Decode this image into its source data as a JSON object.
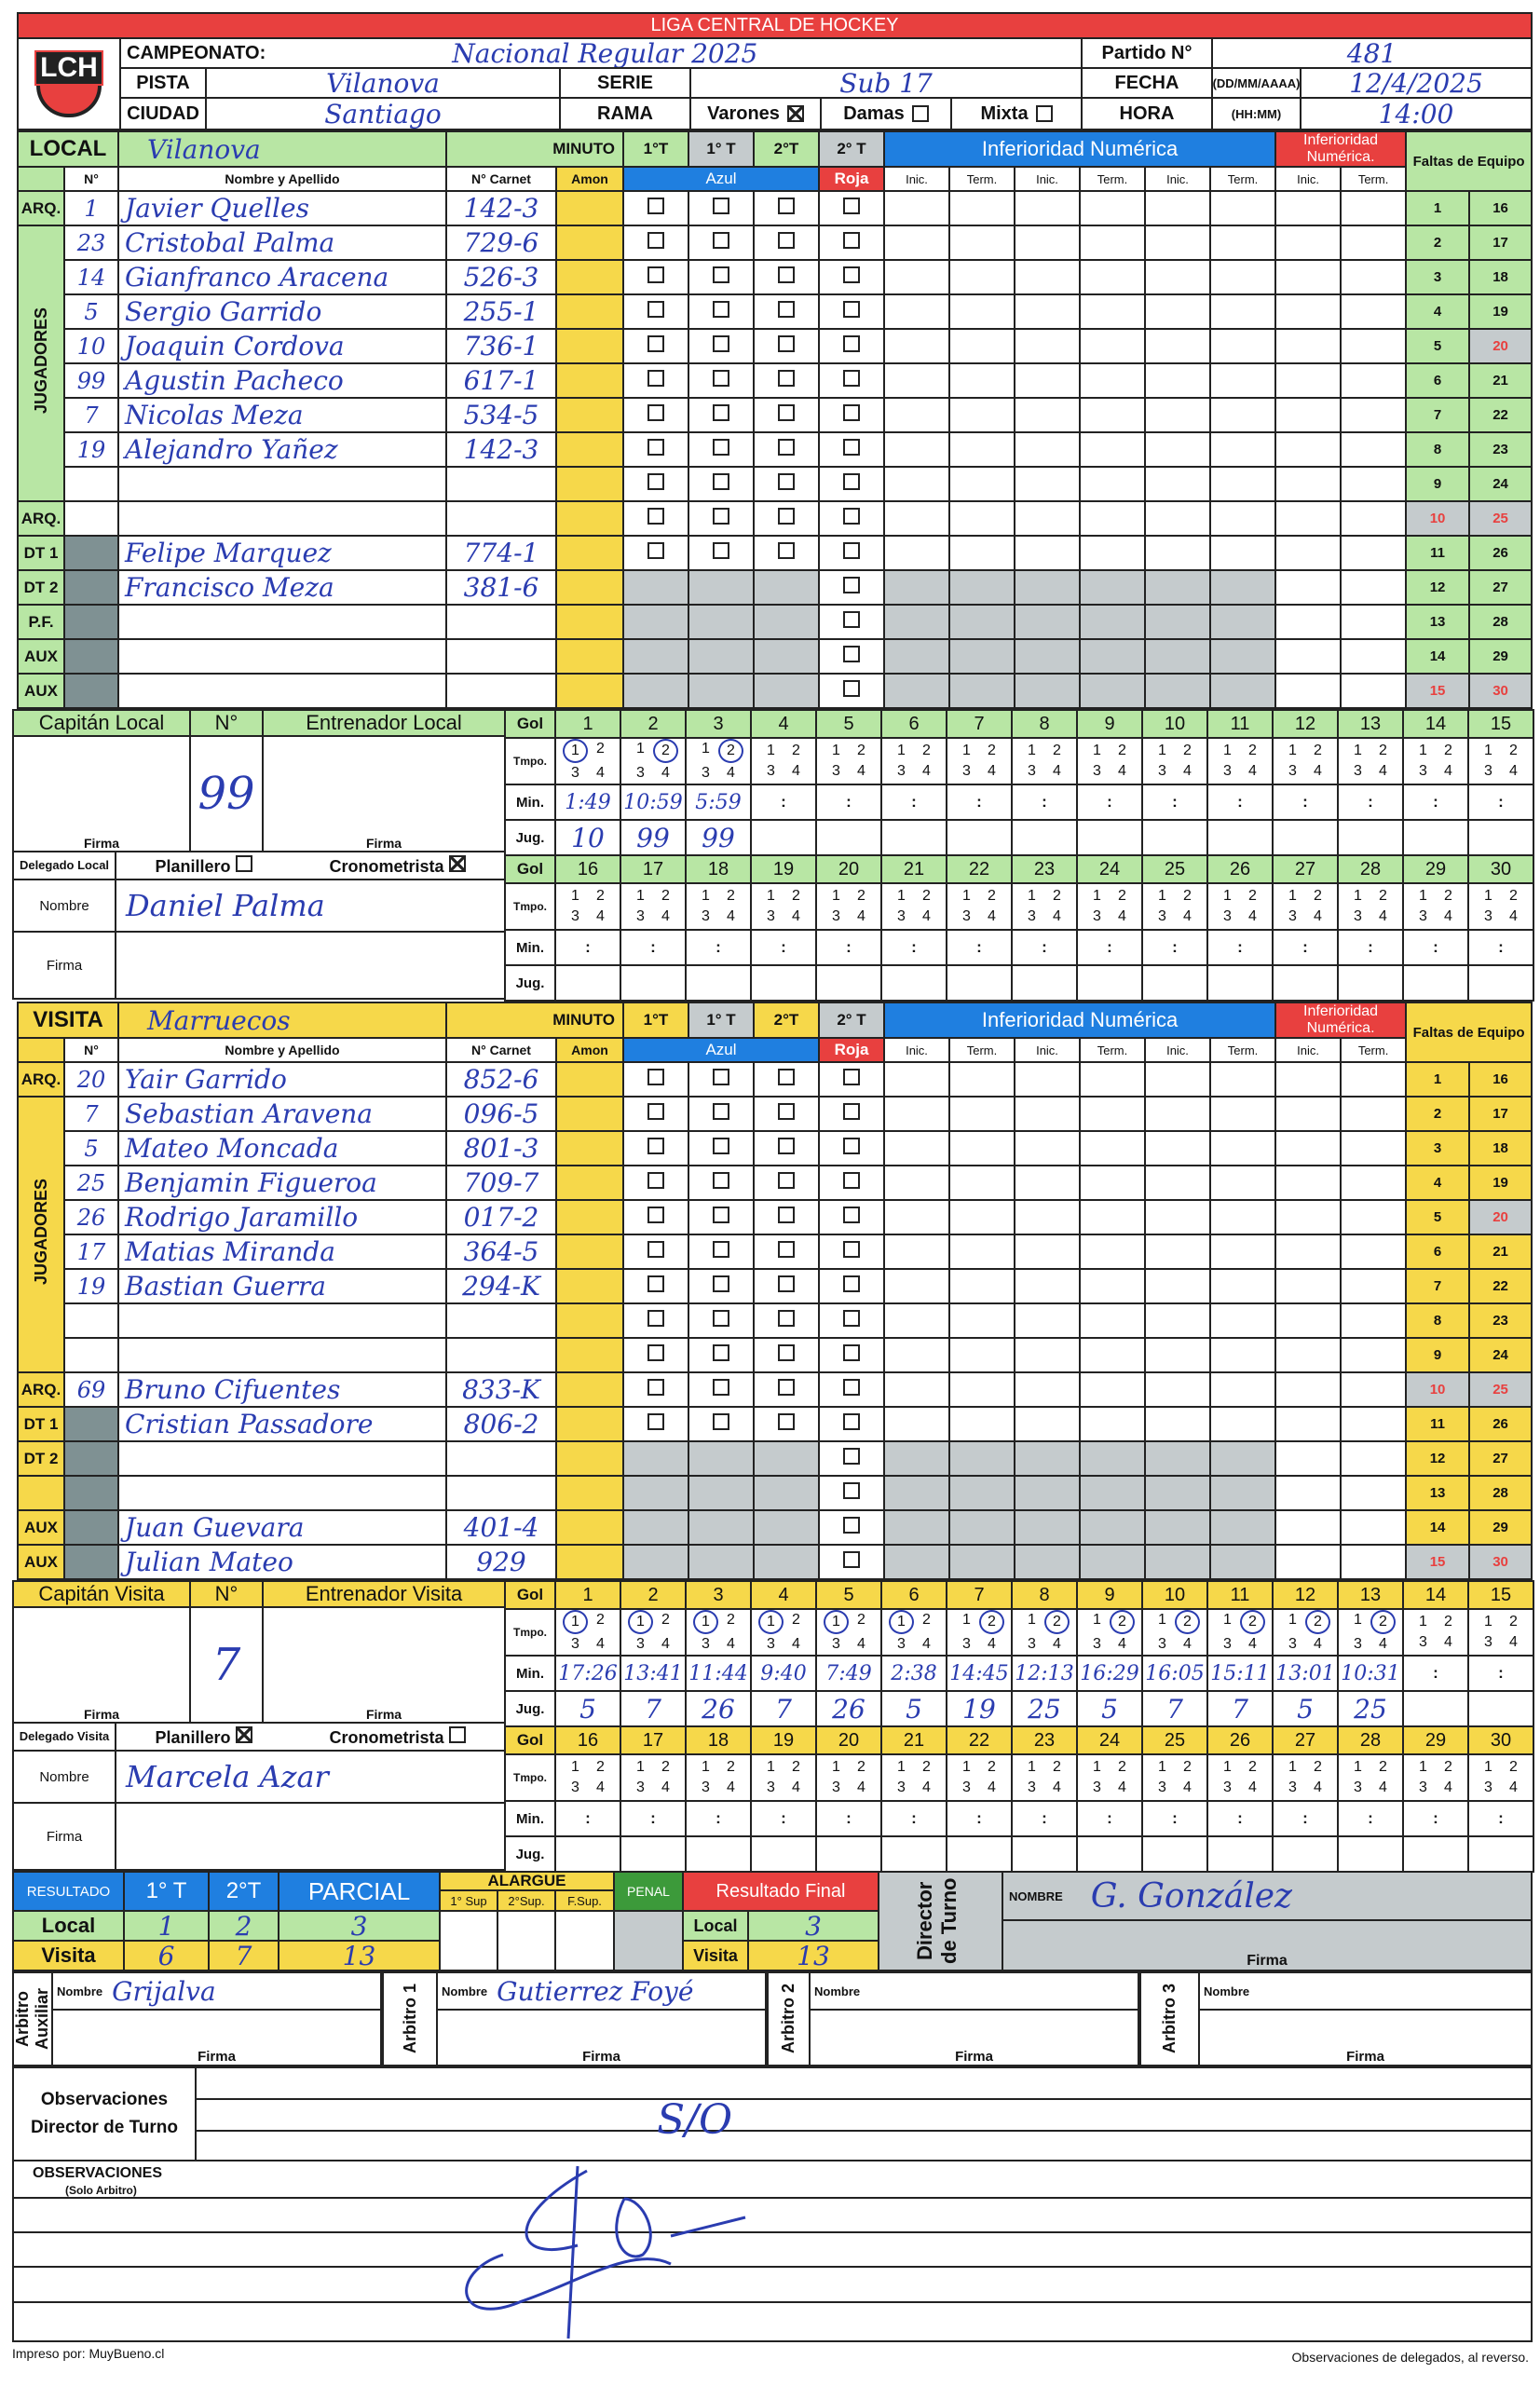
{
  "header": {
    "league": "LIGA CENTRAL DE HOCKEY",
    "logo": "LCH",
    "campeonato_label": "CAMPEONATO:",
    "campeonato": "Nacional Regular 2025",
    "partido_label": "Partido N°",
    "partido": "481",
    "pista_label": "PISTA",
    "pista": "Vilanova",
    "serie_label": "SERIE",
    "serie": "Sub 17",
    "fecha_label": "FECHA",
    "fecha_format": "(DD/MM/AAAA)",
    "fecha": "12/4/2025",
    "ciudad_label": "CIUDAD",
    "ciudad": "Santiago",
    "rama_label": "RAMA",
    "varones": "Varones",
    "varones_checked": true,
    "damas": "Damas",
    "damas_checked": false,
    "mixta": "Mixta",
    "mixta_checked": false,
    "hora_label": "HORA",
    "hora_format": "(HH:MM)",
    "hora": "14:00"
  },
  "cols": {
    "minuto": "MINUTO",
    "p1a": "1°T",
    "p1b": "1° T",
    "p2a": "2°T",
    "p2b": "2° T",
    "inferioridad": "Inferioridad Numérica",
    "inferioridad2": "Inferioridad Numérica.",
    "faltas": "Faltas de Equipo",
    "num": "N°",
    "nombre": "Nombre y Apellido",
    "carnet": "N° Carnet",
    "amon": "Amon",
    "azul": "Azul",
    "roja": "Roja",
    "inic": "Inic.",
    "term": "Term.",
    "jugadores": "JUGADORES",
    "gol": "Gol",
    "tmpo": "Tmpo.",
    "min": "Min.",
    "jug": "Jug.",
    "firma": "Firma",
    "nombre_short": "Nombre"
  },
  "faltas": [
    1,
    2,
    3,
    4,
    5,
    6,
    7,
    8,
    9,
    10,
    11,
    12,
    13,
    14,
    15,
    16,
    17,
    18,
    19,
    20,
    21,
    22,
    23,
    24,
    25,
    26,
    27,
    28,
    29,
    30
  ],
  "faltas_red": [
    10,
    15,
    20,
    25,
    30
  ],
  "colors": {
    "red": "#e8403f",
    "green": "#b8e6a4",
    "yellow": "#f6d84a",
    "blue": "#1f7fe0",
    "grey": "#c5cbcd",
    "ink": "#2a3cb0"
  },
  "local": {
    "label": "LOCAL",
    "name": "Vilanova",
    "rows": [
      {
        "label": "ARQ.",
        "num": "1",
        "name": "Javier Quelles",
        "carnet": "142-3"
      },
      {
        "label": "",
        "num": "23",
        "name": "Cristobal Palma",
        "carnet": "729-6"
      },
      {
        "label": "",
        "num": "14",
        "name": "Gianfranco Aracena",
        "carnet": "526-3"
      },
      {
        "label": "",
        "num": "5",
        "name": "Sergio Garrido",
        "carnet": "255-1"
      },
      {
        "label": "",
        "num": "10",
        "name": "Joaquin Cordova",
        "carnet": "736-1"
      },
      {
        "label": "",
        "num": "99",
        "name": "Agustin Pacheco",
        "carnet": "617-1"
      },
      {
        "label": "",
        "num": "7",
        "name": "Nicolas Meza",
        "carnet": "534-5"
      },
      {
        "label": "",
        "num": "19",
        "name": "Alejandro Yañez",
        "carnet": "142-3"
      },
      {
        "label": "",
        "num": "",
        "name": "",
        "carnet": ""
      },
      {
        "label": "ARQ.",
        "num": "",
        "name": "",
        "carnet": ""
      },
      {
        "label": "DT 1",
        "num": "",
        "name": "Felipe Marquez",
        "carnet": "774-1"
      },
      {
        "label": "DT 2",
        "num": "",
        "name": "Francisco Meza",
        "carnet": "381-6"
      },
      {
        "label": "P.F.",
        "num": "",
        "name": "",
        "carnet": ""
      },
      {
        "label": "AUX",
        "num": "",
        "name": "",
        "carnet": ""
      },
      {
        "label": "AUX",
        "num": "",
        "name": "",
        "carnet": ""
      }
    ],
    "captain_label": "Capitán Local",
    "num_label": "N°",
    "coach_label": "Entrenador Local",
    "captain_num": "99",
    "delegado_label": "Delegado Local",
    "planillero": "Planillero",
    "planillero_checked": false,
    "cronometrista": "Cronometrista",
    "cronometrista_checked": true,
    "delegado_name": "Daniel Palma",
    "goals": [
      {
        "period": 1,
        "min": "1:49",
        "jug": "10"
      },
      {
        "period": 2,
        "min": "10:59",
        "jug": "99"
      },
      {
        "period": 2,
        "min": "5:59",
        "jug": "99"
      }
    ]
  },
  "visita": {
    "label": "VISITA",
    "name": "Marruecos",
    "rows": [
      {
        "label": "ARQ.",
        "num": "20",
        "name": "Yair Garrido",
        "carnet": "852-6"
      },
      {
        "label": "",
        "num": "7",
        "name": "Sebastian Aravena",
        "carnet": "096-5"
      },
      {
        "label": "",
        "num": "5",
        "name": "Mateo Moncada",
        "carnet": "801-3"
      },
      {
        "label": "",
        "num": "25",
        "name": "Benjamin Figueroa",
        "carnet": "709-7"
      },
      {
        "label": "",
        "num": "26",
        "name": "Rodrigo Jaramillo",
        "carnet": "017-2"
      },
      {
        "label": "",
        "num": "17",
        "name": "Matias Miranda",
        "carnet": "364-5"
      },
      {
        "label": "",
        "num": "19",
        "name": "Bastian Guerra",
        "carnet": "294-K"
      },
      {
        "label": "",
        "num": "",
        "name": "",
        "carnet": ""
      },
      {
        "label": "",
        "num": "",
        "name": "",
        "carnet": ""
      },
      {
        "label": "ARQ.",
        "num": "69",
        "name": "Bruno Cifuentes",
        "carnet": "833-K"
      },
      {
        "label": "DT 1",
        "num": "",
        "name": "Cristian Passadore",
        "carnet": "806-2"
      },
      {
        "label": "DT 2",
        "num": "",
        "name": "",
        "carnet": ""
      },
      {
        "label": "",
        "num": "",
        "name": "",
        "carnet": ""
      },
      {
        "label": "AUX",
        "num": "",
        "name": "Juan Guevara",
        "carnet": "401-4"
      },
      {
        "label": "AUX",
        "num": "",
        "name": "Julian Mateo",
        "carnet": "929"
      }
    ],
    "captain_label": "Capitán Visita",
    "num_label": "N°",
    "coach_label": "Entrenador Visita",
    "captain_num": "7",
    "delegado_label": "Delegado Visita",
    "planillero": "Planillero",
    "planillero_checked": true,
    "cronometrista": "Cronometrista",
    "cronometrista_checked": false,
    "delegado_name": "Marcela Azar",
    "goals": [
      {
        "period": 1,
        "min": "17:26",
        "jug": "5"
      },
      {
        "period": 1,
        "min": "13:41",
        "jug": "7"
      },
      {
        "period": 1,
        "min": "11:44",
        "jug": "26"
      },
      {
        "period": 1,
        "min": "9:40",
        "jug": "7"
      },
      {
        "period": 1,
        "min": "7:49",
        "jug": "26"
      },
      {
        "period": 1,
        "min": "2:38",
        "jug": "5"
      },
      {
        "period": 2,
        "min": "14:45",
        "jug": "19"
      },
      {
        "period": 2,
        "min": "12:13",
        "jug": "25"
      },
      {
        "period": 2,
        "min": "16:29",
        "jug": "5"
      },
      {
        "period": 2,
        "min": "16:05",
        "jug": "7"
      },
      {
        "period": 2,
        "min": "15:11",
        "jug": "7"
      },
      {
        "period": 2,
        "min": "13:01",
        "jug": "5"
      },
      {
        "period": 2,
        "min": "10:31",
        "jug": "25"
      }
    ]
  },
  "results": {
    "label": "RESULTADO",
    "p1": "1° T",
    "p2": "2°T",
    "parcial": "PARCIAL",
    "alargue": "ALARGUE",
    "sup1": "1° Sup",
    "sup2": "2°Sup.",
    "fsup": "F.Sup.",
    "penal": "PENAL",
    "final": "Resultado Final",
    "local_label": "Local",
    "visita_label": "Visita",
    "local": {
      "p1": "1",
      "p2": "2",
      "parcial": "3",
      "final": "3"
    },
    "visita": {
      "p1": "6",
      "p2": "7",
      "parcial": "13",
      "final": "13"
    },
    "director_label": "Director de Turno",
    "director_nombre_label": "NOMBRE",
    "director_name": "G. González",
    "firma": "Firma"
  },
  "referees": [
    {
      "label": "Arbitro Auxiliar",
      "nombre_label": "Nombre",
      "name": "Grijalva",
      "firma": "Firma"
    },
    {
      "label": "Arbitro 1",
      "nombre_label": "Nombre",
      "name": "Gutierrez Foyé",
      "firma": "Firma"
    },
    {
      "label": "Arbitro 2",
      "nombre_label": "Nombre",
      "name": "",
      "firma": "Firma"
    },
    {
      "label": "Arbitro 3",
      "nombre_label": "Nombre",
      "name": "",
      "firma": "Firma"
    }
  ],
  "observaciones": {
    "director_label": "Observaciones Director de Turno",
    "director_text": "S/O",
    "arbitro_label": "OBSERVACIONES",
    "arbitro_sub": "(Solo Arbitro)"
  },
  "footer": {
    "left": "Impreso por: MuyBueno.cl",
    "right": "Observaciones de delegados, al reverso."
  }
}
